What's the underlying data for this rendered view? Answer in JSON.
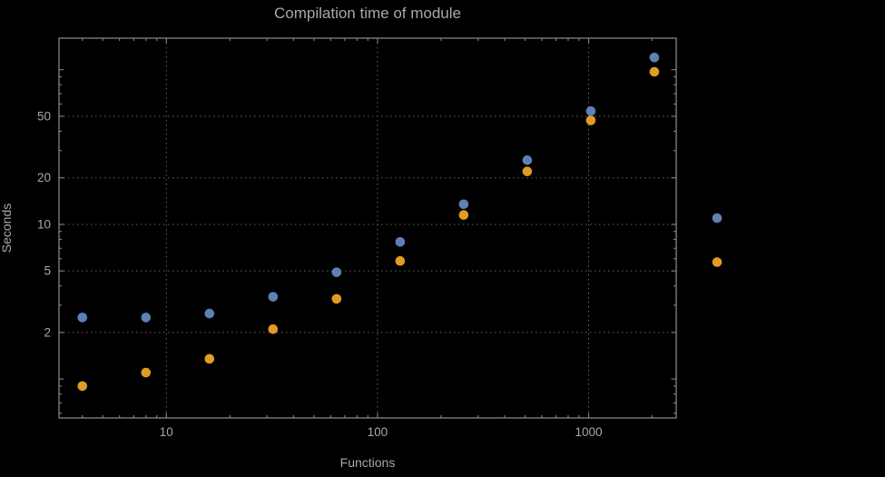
{
  "chart_data": {
    "type": "scatter",
    "title": "Compilation time of module",
    "xlabel": "Functions",
    "ylabel": "Seconds",
    "x_scale": "log",
    "y_scale": "log",
    "xlim": [
      3.1,
      2600
    ],
    "ylim": [
      0.56,
      160
    ],
    "x_ticks": [
      10,
      100,
      1000
    ],
    "y_ticks": [
      2,
      5,
      10,
      20,
      50
    ],
    "x_gridlines": [
      10,
      100,
      1000
    ],
    "y_gridlines": [
      2,
      5,
      10,
      20,
      50
    ],
    "grid_style": "dotted",
    "legend_position": "right-outside",
    "series": [
      {
        "name": "blue",
        "color": "#5E81B5",
        "x": [
          4,
          8,
          16,
          32,
          64,
          128,
          256,
          512,
          1024,
          2048
        ],
        "y": [
          2.5,
          2.5,
          2.65,
          3.4,
          4.9,
          7.7,
          13.5,
          26,
          54,
          120
        ]
      },
      {
        "name": "orange",
        "color": "#E19C24",
        "x": [
          4,
          8,
          16,
          32,
          64,
          128,
          256,
          512,
          1024,
          2048
        ],
        "y": [
          0.9,
          1.1,
          1.35,
          2.1,
          3.3,
          5.8,
          11.5,
          22,
          47,
          97
        ]
      }
    ],
    "legend_markers": [
      {
        "name": "legend-marker-blue",
        "color": "#5E81B5"
      },
      {
        "name": "legend-marker-orange",
        "color": "#E19C24"
      }
    ]
  },
  "theme": {
    "background": "#000000",
    "text_color": "#a8a8a8",
    "frame_color": "#848484",
    "grid_color": "#636363"
  }
}
